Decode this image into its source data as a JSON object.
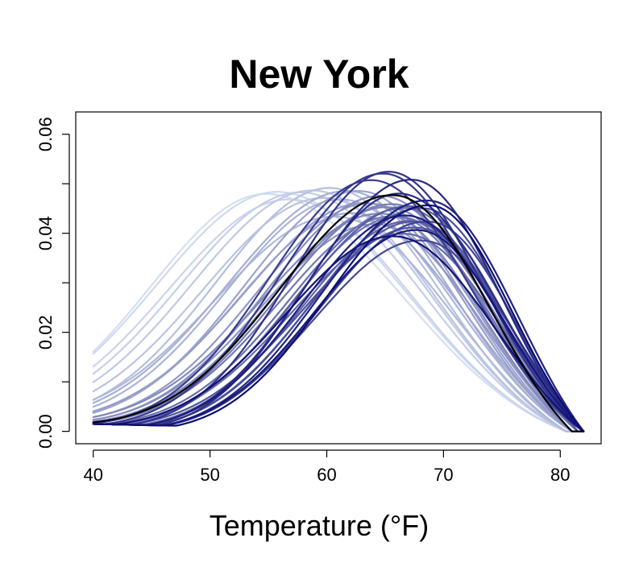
{
  "chart_data": {
    "type": "line",
    "title": "New York",
    "xlabel": "Temperature (°F)",
    "ylabel": "",
    "xlim": [
      38.5,
      83.5
    ],
    "ylim": [
      -0.0025,
      0.0645
    ],
    "x_ticks": [
      40,
      50,
      60,
      70,
      80
    ],
    "x_tick_labels": [
      "40",
      "50",
      "60",
      "70",
      "80"
    ],
    "y_ticks": [
      0.0,
      0.01,
      0.02,
      0.03,
      0.04,
      0.05,
      0.06
    ],
    "y_tick_labels": [
      "0.00",
      "",
      "0.02",
      "",
      "0.04",
      "",
      "0.06"
    ],
    "grid": false,
    "legend": "none",
    "x_range": [
      40,
      82
    ],
    "baseline_start": 0.0015,
    "color_gradient": [
      "#d4dff2",
      "#0d0d73"
    ],
    "highlight_color": "#000000",
    "curve_count": 40,
    "series": [
      {
        "mode": 55.0,
        "peak": 0.0495,
        "spread_left": 10.0,
        "spread_right": 11.5,
        "end": 80.5
      },
      {
        "mode": 56.0,
        "peak": 0.05,
        "spread_left": 10.5,
        "spread_right": 11.0,
        "end": 80.5
      },
      {
        "mode": 57.0,
        "peak": 0.0485,
        "spread_left": 10.5,
        "spread_right": 10.5,
        "end": 80.5
      },
      {
        "mode": 58.0,
        "peak": 0.0505,
        "spread_left": 10.5,
        "spread_right": 10.5,
        "end": 80.5
      },
      {
        "mode": 59.0,
        "peak": 0.051,
        "spread_left": 10.5,
        "spread_right": 10.0,
        "end": 80.5
      },
      {
        "mode": 60.0,
        "peak": 0.0495,
        "spread_left": 10.5,
        "spread_right": 9.5,
        "end": 80.5
      },
      {
        "mode": 60.5,
        "peak": 0.052,
        "spread_left": 10.0,
        "spread_right": 9.5,
        "end": 80.5
      },
      {
        "mode": 61.0,
        "peak": 0.047,
        "spread_left": 10.5,
        "spread_right": 10.0,
        "end": 80.5
      },
      {
        "mode": 61.5,
        "peak": 0.05,
        "spread_left": 10.0,
        "spread_right": 9.5,
        "end": 81.0
      },
      {
        "mode": 62.0,
        "peak": 0.0515,
        "spread_left": 10.5,
        "spread_right": 9.0,
        "end": 81.0
      },
      {
        "mode": 62.5,
        "peak": 0.048,
        "spread_left": 10.0,
        "spread_right": 9.5,
        "end": 81.0
      },
      {
        "mode": 63.0,
        "peak": 0.0525,
        "spread_left": 10.0,
        "spread_right": 9.0,
        "end": 81.0
      },
      {
        "mode": 63.5,
        "peak": 0.0495,
        "spread_left": 10.5,
        "spread_right": 8.5,
        "end": 81.0
      },
      {
        "mode": 64.0,
        "peak": 0.051,
        "spread_left": 10.0,
        "spread_right": 9.0,
        "end": 81.0
      },
      {
        "mode": 64.5,
        "peak": 0.047,
        "spread_left": 10.0,
        "spread_right": 9.0,
        "end": 81.0
      },
      {
        "mode": 65.0,
        "peak": 0.053,
        "spread_left": 10.0,
        "spread_right": 8.5,
        "end": 81.0
      },
      {
        "mode": 65.0,
        "peak": 0.049,
        "spread_left": 10.5,
        "spread_right": 8.5,
        "end": 81.0
      },
      {
        "mode": 65.5,
        "peak": 0.0505,
        "spread_left": 10.0,
        "spread_right": 8.5,
        "end": 81.5
      },
      {
        "mode": 66.0,
        "peak": 0.052,
        "spread_left": 10.0,
        "spread_right": 8.5,
        "end": 81.5
      },
      {
        "mode": 66.0,
        "peak": 0.048,
        "spread_left": 10.0,
        "spread_right": 8.0,
        "end": 81.5
      },
      {
        "mode": 66.5,
        "peak": 0.05,
        "spread_left": 9.5,
        "spread_right": 8.5,
        "end": 81.5
      },
      {
        "mode": 67.0,
        "peak": 0.0515,
        "spread_left": 10.0,
        "spread_right": 8.0,
        "end": 81.5
      },
      {
        "mode": 67.0,
        "peak": 0.047,
        "spread_left": 10.0,
        "spread_right": 8.5,
        "end": 81.5
      },
      {
        "mode": 67.5,
        "peak": 0.0495,
        "spread_left": 9.5,
        "spread_right": 8.0,
        "end": 81.5
      },
      {
        "mode": 67.5,
        "peak": 0.053,
        "spread_left": 10.0,
        "spread_right": 8.0,
        "end": 81.5
      },
      {
        "mode": 68.0,
        "peak": 0.0505,
        "spread_left": 9.5,
        "spread_right": 8.0,
        "end": 81.5
      },
      {
        "mode": 68.0,
        "peak": 0.048,
        "spread_left": 10.0,
        "spread_right": 8.0,
        "end": 82.0
      },
      {
        "mode": 68.5,
        "peak": 0.052,
        "spread_left": 9.5,
        "spread_right": 7.5,
        "end": 82.0
      },
      {
        "mode": 68.5,
        "peak": 0.046,
        "spread_left": 9.5,
        "spread_right": 8.0,
        "end": 82.0
      },
      {
        "mode": 69.0,
        "peak": 0.05,
        "spread_left": 9.5,
        "spread_right": 7.5,
        "end": 82.0
      },
      {
        "mode": 64.0,
        "peak": 0.054,
        "spread_left": 9.0,
        "spread_right": 8.5,
        "end": 82.0
      },
      {
        "mode": 65.0,
        "peak": 0.0555,
        "spread_left": 9.0,
        "spread_right": 8.0,
        "end": 82.0
      },
      {
        "mode": 65.5,
        "peak": 0.0565,
        "spread_left": 8.5,
        "spread_right": 8.0,
        "end": 82.0
      },
      {
        "mode": 66.5,
        "peak": 0.0545,
        "spread_left": 8.5,
        "spread_right": 8.5,
        "end": 82.0
      },
      {
        "mode": 67.5,
        "peak": 0.0565,
        "spread_left": 9.0,
        "spread_right": 7.5,
        "end": 82.0
      },
      {
        "mode": 69.0,
        "peak": 0.055,
        "spread_left": 9.5,
        "spread_right": 7.5,
        "end": 82.0
      },
      {
        "mode": 67.0,
        "peak": 0.049,
        "spread_left": 9.0,
        "spread_right": 8.0,
        "end": 82.0
      },
      {
        "mode": 68.0,
        "peak": 0.046,
        "spread_left": 9.0,
        "spread_right": 7.5,
        "end": 82.0
      },
      {
        "mode": 66.0,
        "peak": 0.044,
        "spread_left": 9.5,
        "spread_right": 8.5,
        "end": 82.0
      },
      {
        "mode": 69.0,
        "peak": 0.052,
        "spread_left": 9.0,
        "spread_right": 7.0,
        "end": 82.0
      }
    ],
    "highlight_series": {
      "mode": 66.0,
      "peak": 0.0535,
      "spread_left": 10.0,
      "spread_right": 8.0,
      "end": 81.0
    }
  }
}
